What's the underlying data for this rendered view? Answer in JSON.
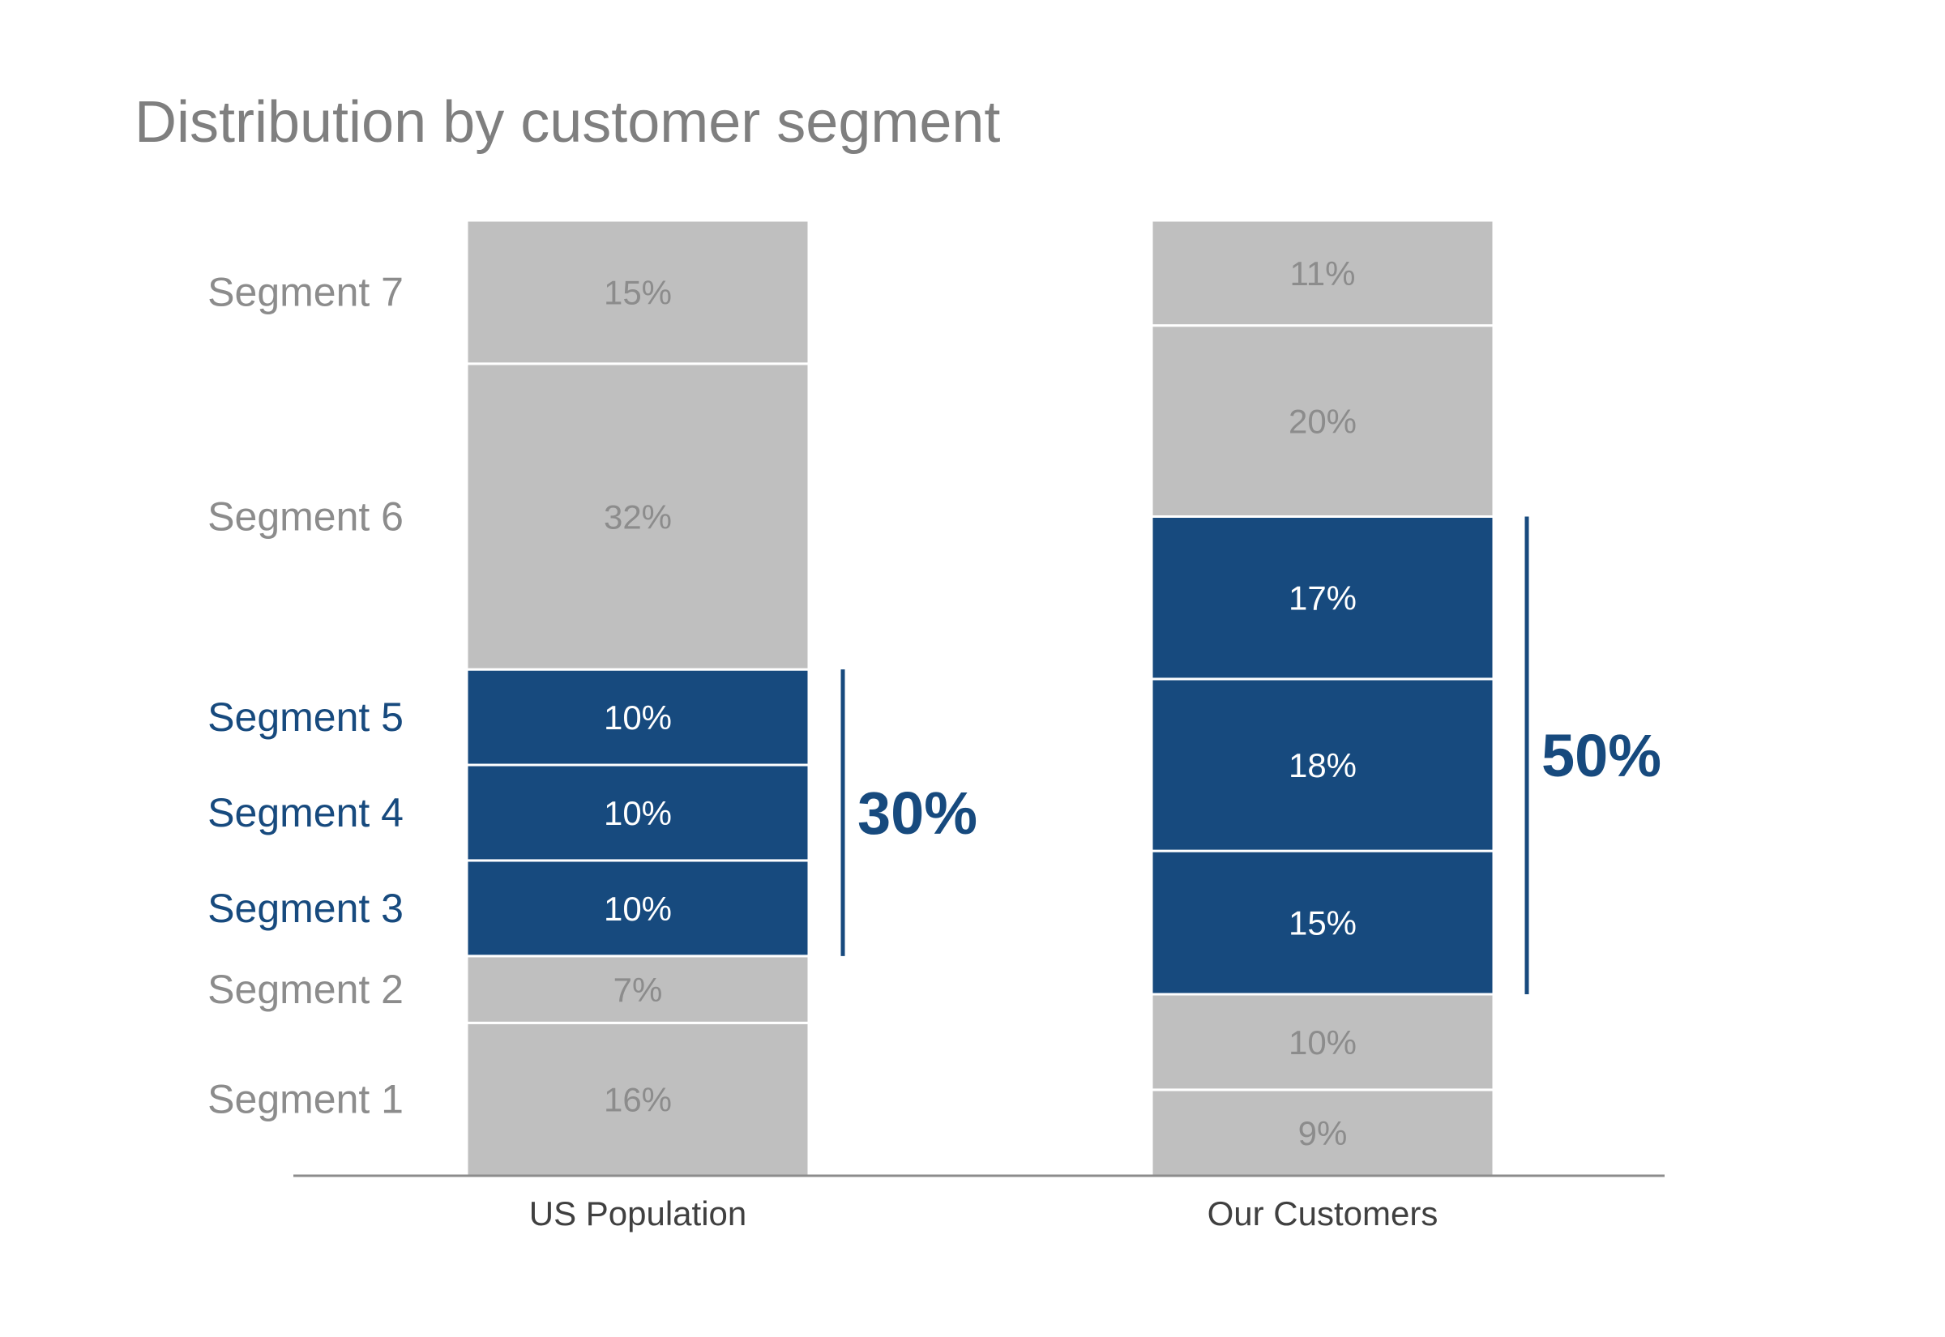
{
  "chart_data": {
    "type": "bar",
    "stacked": true,
    "percent": true,
    "title": "Distribution by customer segment",
    "categories": [
      "US Population",
      "Our Customers"
    ],
    "series": [
      {
        "name": "Segment 1",
        "values": [
          16,
          9
        ],
        "labels": [
          "16%",
          "9%"
        ],
        "highlight": false
      },
      {
        "name": "Segment 2",
        "values": [
          7,
          10
        ],
        "labels": [
          "7%",
          "10%"
        ],
        "highlight": false
      },
      {
        "name": "Segment 3",
        "values": [
          10,
          15
        ],
        "labels": [
          "10%",
          "15%"
        ],
        "highlight": true
      },
      {
        "name": "Segment 4",
        "values": [
          10,
          18
        ],
        "labels": [
          "10%",
          "18%"
        ],
        "highlight": true
      },
      {
        "name": "Segment 5",
        "values": [
          10,
          17
        ],
        "labels": [
          "10%",
          "17%"
        ],
        "highlight": true
      },
      {
        "name": "Segment 6",
        "values": [
          32,
          20
        ],
        "labels": [
          "32%",
          "20%"
        ],
        "highlight": false
      },
      {
        "name": "Segment 7",
        "values": [
          15,
          11
        ],
        "labels": [
          "15%",
          "11%"
        ],
        "highlight": false
      }
    ],
    "annotations": [
      {
        "category": "US Population",
        "from_segment": "Segment 3",
        "to_segment": "Segment 5",
        "value": 30,
        "label": "30%"
      },
      {
        "category": "Our Customers",
        "from_segment": "Segment 3",
        "to_segment": "Segment 5",
        "value": 50,
        "label": "50%"
      }
    ],
    "ylim": [
      0,
      100
    ],
    "grid": false,
    "legend": "none"
  },
  "colors": {
    "highlight": "#174a7e",
    "muted": "#bfbfbf",
    "muted_text": "#8c8c8c",
    "highlight_text": "#ffffff",
    "axis": "#8c8c8c",
    "title": "#7f7f7f"
  }
}
